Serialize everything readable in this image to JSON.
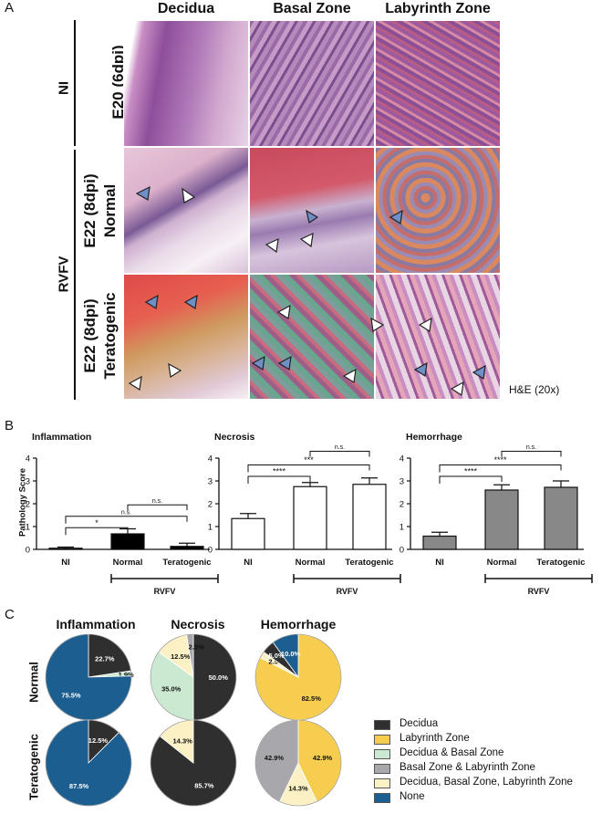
{
  "panelA": {
    "letter": "A",
    "columns": [
      "Decidua",
      "Basal Zone",
      "Labyrinth Zone"
    ],
    "group_labels": {
      "ni": "NI",
      "rvfv": "RVFV"
    },
    "row_labels": [
      "E20 (6dpi)",
      "E22 (8dpi)\nNormal",
      "E22 (8dpi)\nTeratogenic"
    ],
    "stain_note": "H&E (20x)"
  },
  "panelB": {
    "letter": "B",
    "y_axis_label": "Pathology Score",
    "group_label": "RVFV",
    "sig": {
      "star1": "*",
      "star3": "***",
      "star4": "****",
      "ns": "n.s."
    }
  },
  "panelC": {
    "letter": "C",
    "columns": [
      "Inflammation",
      "Necrosis",
      "Hemorrhage"
    ],
    "rows": [
      "Normal",
      "Teratogenic"
    ],
    "legend": [
      {
        "label": "Decidua",
        "color": "#2f2f2f"
      },
      {
        "label": "Labyrinth Zone",
        "color": "#f6cd4e"
      },
      {
        "label": "Decidua & Basal Zone",
        "color": "#cbe8d1"
      },
      {
        "label": "Basal Zone & Labyrinth Zone",
        "color": "#a8a8ac"
      },
      {
        "label": "Decidua, Basal Zone, Labyrinth Zone",
        "color": "#fbf1c4"
      },
      {
        "label": "None",
        "color": "#1c5e8f"
      }
    ]
  },
  "chart_data": [
    {
      "type": "bar",
      "title": "Inflammation",
      "categories": [
        "NI",
        "Normal",
        "Teratogenic"
      ],
      "values": [
        0.05,
        0.68,
        0.13
      ],
      "errors": [
        0.05,
        0.22,
        0.14
      ],
      "ylabel": "Pathology Score",
      "ylim": [
        0,
        4
      ],
      "yticks": [
        0,
        1,
        2,
        3,
        4
      ],
      "fill": "#000000",
      "group": "RVFV",
      "significance": [
        {
          "pair": [
            "NI",
            "Normal"
          ],
          "label": "*"
        },
        {
          "pair": [
            "NI",
            "Teratogenic"
          ],
          "label": "n.s."
        },
        {
          "pair": [
            "Normal",
            "Teratogenic"
          ],
          "label": "n.s."
        }
      ]
    },
    {
      "type": "bar",
      "title": "Necrosis",
      "categories": [
        "NI",
        "Normal",
        "Teratogenic"
      ],
      "values": [
        1.35,
        2.75,
        2.85
      ],
      "errors": [
        0.22,
        0.18,
        0.28
      ],
      "ylim": [
        0,
        4
      ],
      "yticks": [
        0,
        1,
        2,
        3,
        4
      ],
      "fill": "#ffffff",
      "group": "RVFV",
      "significance": [
        {
          "pair": [
            "NI",
            "Normal"
          ],
          "label": "****"
        },
        {
          "pair": [
            "NI",
            "Teratogenic"
          ],
          "label": "***"
        },
        {
          "pair": [
            "Normal",
            "Teratogenic"
          ],
          "label": "n.s."
        }
      ]
    },
    {
      "type": "bar",
      "title": "Hemorrhage",
      "categories": [
        "NI",
        "Normal",
        "Teratogenic"
      ],
      "values": [
        0.58,
        2.6,
        2.72
      ],
      "errors": [
        0.17,
        0.23,
        0.28
      ],
      "ylim": [
        0,
        4
      ],
      "yticks": [
        0,
        1,
        2,
        3,
        4
      ],
      "fill": "#888888",
      "group": "RVFV",
      "significance": [
        {
          "pair": [
            "NI",
            "Normal"
          ],
          "label": "****"
        },
        {
          "pair": [
            "NI",
            "Teratogenic"
          ],
          "label": "****"
        },
        {
          "pair": [
            "Normal",
            "Teratogenic"
          ],
          "label": "n.s."
        }
      ]
    },
    {
      "type": "pie",
      "title": "Inflammation",
      "row": "Normal",
      "slices": [
        {
          "category": "Decidua",
          "value": 22.7,
          "label": "22.7%"
        },
        {
          "category": "Decidua & Basal Zone",
          "value": 1.9,
          "label": "1.9%"
        },
        {
          "category": "None",
          "value": 75.5,
          "label": "75.5%"
        }
      ]
    },
    {
      "type": "pie",
      "title": "Necrosis",
      "row": "Normal",
      "slices": [
        {
          "category": "Decidua",
          "value": 50.0,
          "label": "50.0%"
        },
        {
          "category": "Decidua & Basal Zone",
          "value": 35.0,
          "label": "35.0%"
        },
        {
          "category": "Decidua, Basal Zone, Labyrinth Zone",
          "value": 12.5,
          "label": "12.5%"
        },
        {
          "category": "Basal Zone & Labyrinth Zone",
          "value": 2.5,
          "label": "2.5%"
        }
      ]
    },
    {
      "type": "pie",
      "title": "Hemorrhage",
      "row": "Normal",
      "slices": [
        {
          "category": "Labyrinth Zone",
          "value": 82.5,
          "label": "82.5%"
        },
        {
          "category": "Decidua, Basal Zone, Labyrinth Zone",
          "value": 2.5,
          "label": "2.5%"
        },
        {
          "category": "Decidua",
          "value": 5.0,
          "label": "5.0%"
        },
        {
          "category": "None",
          "value": 10.0,
          "label": "10.0%"
        }
      ]
    },
    {
      "type": "pie",
      "title": "Inflammation",
      "row": "Teratogenic",
      "slices": [
        {
          "category": "Decidua",
          "value": 12.5,
          "label": "12.5%"
        },
        {
          "category": "None",
          "value": 87.5,
          "label": "87.5%"
        }
      ]
    },
    {
      "type": "pie",
      "title": "Necrosis",
      "row": "Teratogenic",
      "slices": [
        {
          "category": "Decidua",
          "value": 85.7,
          "label": "85.7%"
        },
        {
          "category": "Decidua, Basal Zone, Labyrinth Zone",
          "value": 14.3,
          "label": "14.3%"
        }
      ]
    },
    {
      "type": "pie",
      "title": "Hemorrhage",
      "row": "Teratogenic",
      "slices": [
        {
          "category": "Labyrinth Zone",
          "value": 42.9,
          "label": "42.9%"
        },
        {
          "category": "Decidua, Basal Zone, Labyrinth Zone",
          "value": 14.3,
          "label": "14.3%"
        },
        {
          "category": "Basal Zone & Labyrinth Zone",
          "value": 42.9,
          "label": "42.9%"
        }
      ]
    }
  ]
}
